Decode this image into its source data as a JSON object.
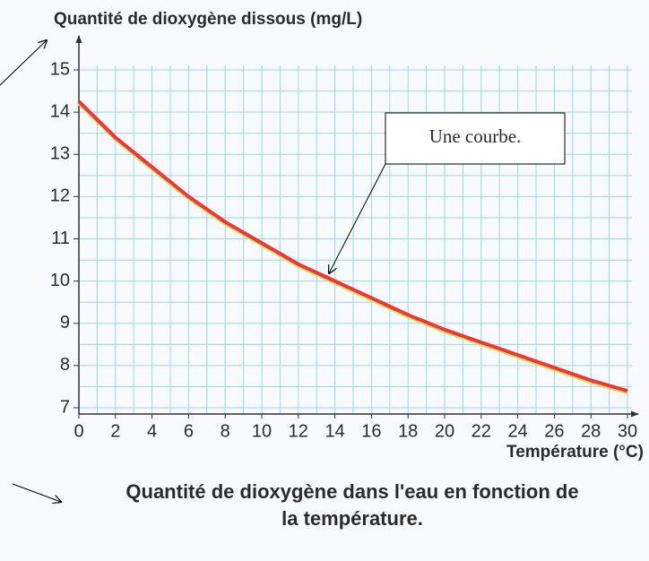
{
  "chart_data": {
    "type": "line",
    "y_label": "Quantité de dioxygène dissous (mg/L)",
    "x_label": "Température (°C)",
    "title": [
      "Quantité de dioxygène dans l'eau en fonction de",
      "la température."
    ],
    "annotation": "Une courbe.",
    "x": [
      0,
      2,
      4,
      6,
      8,
      10,
      12,
      14,
      16,
      18,
      20,
      22,
      24,
      26,
      28,
      30
    ],
    "series": [
      {
        "color": "#e8383d",
        "values": [
          14.25,
          13.4,
          12.7,
          12.0,
          11.4,
          10.9,
          10.4,
          10.0,
          9.6,
          9.2,
          8.85,
          8.55,
          8.25,
          7.95,
          7.65,
          7.4
        ]
      }
    ],
    "xlim": [
      0,
      30
    ],
    "xticks": [
      0,
      2,
      4,
      6,
      8,
      10,
      12,
      14,
      16,
      18,
      20,
      22,
      24,
      26,
      28,
      30
    ],
    "ylim": [
      7,
      15
    ],
    "yticks": [
      7,
      8,
      9,
      10,
      11,
      12,
      13,
      14,
      15
    ],
    "grid": true
  }
}
